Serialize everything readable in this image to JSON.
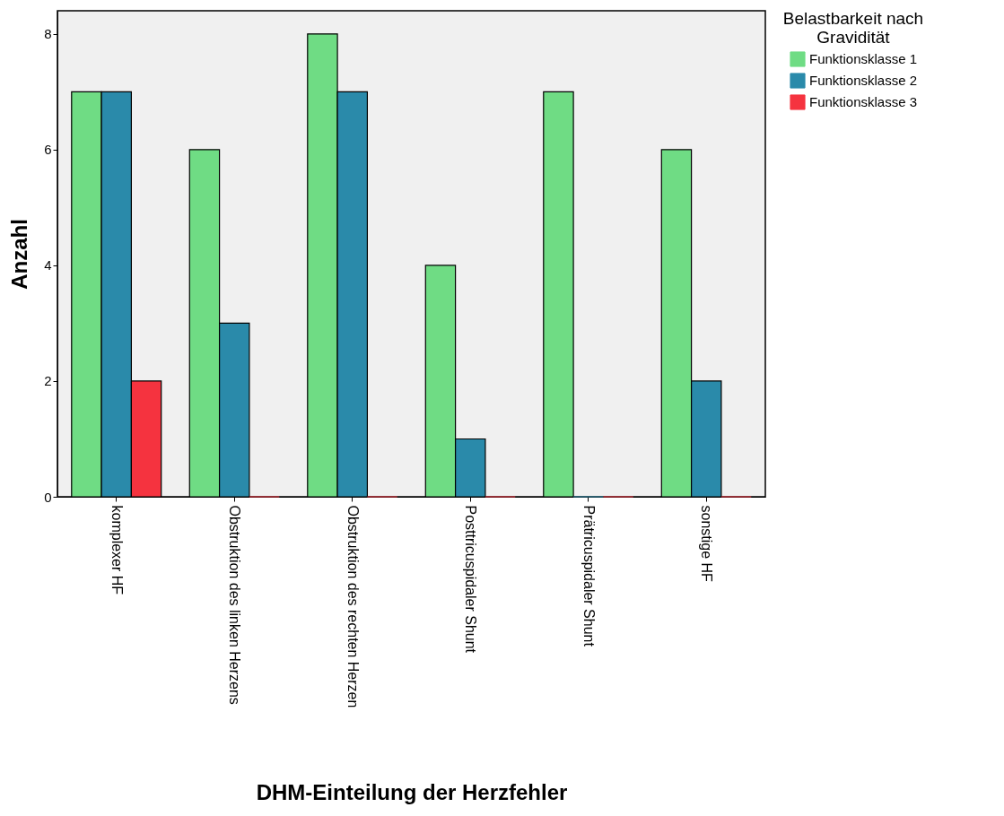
{
  "chart_data": {
    "type": "bar",
    "xlabel": "DHM-Einteilung der Herzfehler",
    "ylabel": "Anzahl",
    "legend_title": "Belastbarkeit nach Gravidität",
    "categories": [
      "komplexer HF",
      "Obstruktion des linken Herzens",
      "Obstruktion des rechten Herzen",
      "Posttricuspidaler Shunt",
      "Prätricuspidaler Shunt",
      "sonstige HF"
    ],
    "series": [
      {
        "name": "Funktionsklasse 1",
        "color": "#6fdc84",
        "values": [
          7,
          6,
          8,
          4,
          7,
          6
        ]
      },
      {
        "name": "Funktionsklasse 2",
        "color": "#2a8aaa",
        "values": [
          7,
          3,
          7,
          1,
          0,
          2
        ]
      },
      {
        "name": "Funktionsklasse 3",
        "color": "#f5333f",
        "values": [
          2,
          0,
          0,
          0,
          0,
          0
        ]
      }
    ],
    "ylim": [
      0,
      8.4
    ],
    "yticks": [
      0,
      2,
      4,
      6,
      8
    ],
    "grid": false,
    "legend": "top right"
  }
}
